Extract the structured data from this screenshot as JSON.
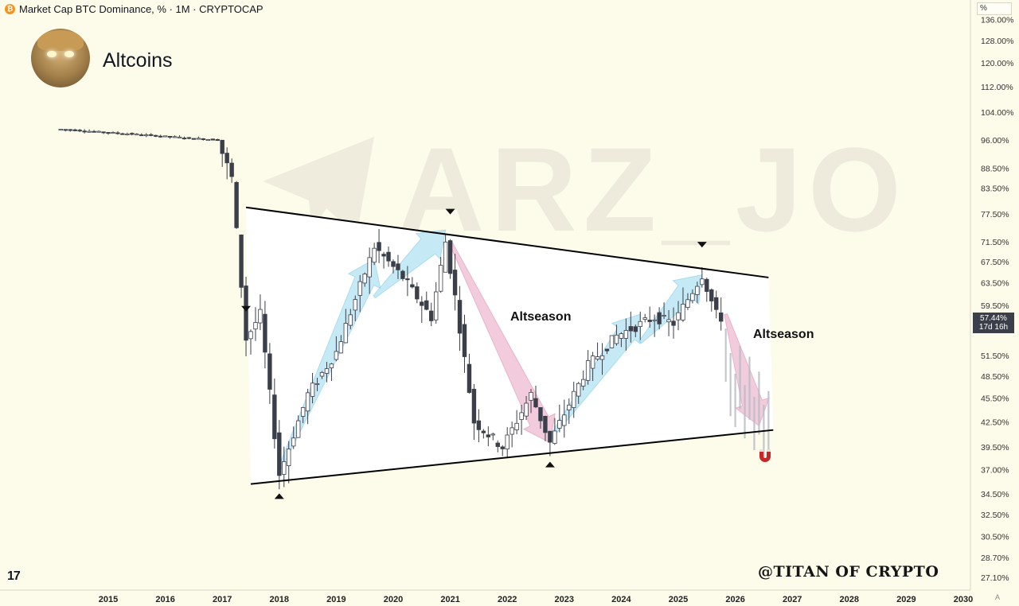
{
  "header": {
    "symbol_badge": "₿",
    "title": "Market Cap BTC Dominance, % · 1M · CRYPTOCAP"
  },
  "profile": {
    "name": "Altcoins"
  },
  "unit_label": "%",
  "watermark": "ARZ_JO",
  "credit": "@TITAN OF CRYPTO",
  "tv_logo": "17",
  "auto_label": "A",
  "price_tag": {
    "value": "57.44%",
    "countdown": "17d 16h"
  },
  "annotations": {
    "altseason_1": "Altseason",
    "altseason_2": "Altseason"
  },
  "colors": {
    "background": "#fdfbea",
    "candle_up": "#ffffff",
    "candle_down": "#3a3f4a",
    "trend_line": "#000000",
    "arrow_up": "#9fdcf0",
    "arrow_down": "#eaa8c4",
    "channel_fill": "#ffffff",
    "magnet": "#c62828"
  },
  "icons": [
    "bitcoin-icon",
    "avatar-image",
    "tradingview-logo-icon",
    "magnet-icon",
    "telegram-watermark-icon",
    "triangle-down-marker-icon",
    "triangle-up-marker-icon"
  ],
  "chart_data": {
    "type": "candlestick",
    "title": "Market Cap BTC Dominance, % · 1M · CRYPTOCAP",
    "y_scale": "log",
    "x_ticks": [
      "2015",
      "2016",
      "2017",
      "2018",
      "2019",
      "2020",
      "2021",
      "2022",
      "2023",
      "2024",
      "2025",
      "2026",
      "2027",
      "2028",
      "2029",
      "2030"
    ],
    "y_ticks": [
      {
        "value": 136,
        "label": "136.00%"
      },
      {
        "value": 128,
        "label": "128.00%"
      },
      {
        "value": 120,
        "label": "120.00%"
      },
      {
        "value": 112,
        "label": "112.00%"
      },
      {
        "value": 104,
        "label": "104.00%"
      },
      {
        "value": 96,
        "label": "96.00%"
      },
      {
        "value": 88.5,
        "label": "88.50%"
      },
      {
        "value": 83.5,
        "label": "83.50%"
      },
      {
        "value": 77.5,
        "label": "77.50%"
      },
      {
        "value": 71.5,
        "label": "71.50%"
      },
      {
        "value": 67.5,
        "label": "67.50%"
      },
      {
        "value": 63.5,
        "label": "63.50%"
      },
      {
        "value": 59.5,
        "label": "59.50%"
      },
      {
        "value": 51.5,
        "label": "51.50%"
      },
      {
        "value": 48.5,
        "label": "48.50%"
      },
      {
        "value": 45.5,
        "label": "45.50%"
      },
      {
        "value": 42.5,
        "label": "42.50%"
      },
      {
        "value": 39.5,
        "label": "39.50%"
      },
      {
        "value": 37.0,
        "label": "37.00%"
      },
      {
        "value": 34.5,
        "label": "34.50%"
      },
      {
        "value": 32.5,
        "label": "32.50%"
      },
      {
        "value": 30.5,
        "label": "30.50%"
      },
      {
        "value": 28.7,
        "label": "28.70%"
      },
      {
        "value": 27.1,
        "label": "27.10%"
      }
    ],
    "current_value": 57.44,
    "pivots": [
      {
        "date": "2014-03",
        "value": 99.0
      },
      {
        "date": "2016-12",
        "value": 96.0
      },
      {
        "date": "2017-03",
        "value": 86.0
      },
      {
        "date": "2017-06",
        "value": 54.0
      },
      {
        "date": "2017-09",
        "value": 58.0
      },
      {
        "date": "2018-01",
        "value": 36.5
      },
      {
        "date": "2018-07",
        "value": 46.0
      },
      {
        "date": "2019-01",
        "value": 52.0
      },
      {
        "date": "2019-09",
        "value": 70.5
      },
      {
        "date": "2020-03",
        "value": 64.5
      },
      {
        "date": "2020-09",
        "value": 57.5
      },
      {
        "date": "2020-12",
        "value": 71.5
      },
      {
        "date": "2021-02",
        "value": 61.0
      },
      {
        "date": "2021-06",
        "value": 42.5
      },
      {
        "date": "2021-12",
        "value": 39.5
      },
      {
        "date": "2022-06",
        "value": 46.0
      },
      {
        "date": "2022-10",
        "value": 40.0
      },
      {
        "date": "2023-06",
        "value": 50.0
      },
      {
        "date": "2023-12",
        "value": 54.5
      },
      {
        "date": "2024-08",
        "value": 57.5
      },
      {
        "date": "2024-12",
        "value": 56.5
      },
      {
        "date": "2025-06",
        "value": 65.0
      },
      {
        "date": "2025-09",
        "value": 58.0
      },
      {
        "date": "2025-10",
        "value": 57.44
      }
    ],
    "projection": [
      {
        "date": "2025-11",
        "value": 53.0
      },
      {
        "date": "2025-12",
        "value": 48.0
      },
      {
        "date": "2026-01",
        "value": 46.5
      },
      {
        "date": "2026-02",
        "value": 49.0
      },
      {
        "date": "2026-03",
        "value": 45.0
      },
      {
        "date": "2026-04",
        "value": 47.5
      },
      {
        "date": "2026-05",
        "value": 43.5
      },
      {
        "date": "2026-06",
        "value": 45.5
      },
      {
        "date": "2026-07",
        "value": 42.5
      },
      {
        "date": "2026-08",
        "value": 43.0
      }
    ],
    "channel": {
      "upper": [
        {
          "date": "2017-06",
          "value": 79.0
        },
        {
          "date": "2026-08",
          "value": 64.5
        }
      ],
      "lower": [
        {
          "date": "2017-07",
          "value": 35.5
        },
        {
          "date": "2026-09",
          "value": 41.5
        }
      ]
    },
    "arrows": [
      {
        "kind": "up",
        "from": {
          "date": "2018-01",
          "value": 37.0
        },
        "to": {
          "date": "2019-09",
          "value": 68.0
        }
      },
      {
        "kind": "up",
        "from": {
          "date": "2019-09",
          "value": 61.0
        },
        "to": {
          "date": "2020-12",
          "value": 74.0
        }
      },
      {
        "kind": "down",
        "from": {
          "date": "2021-01",
          "value": 71.5
        },
        "to": {
          "date": "2022-10",
          "value": 40.0
        }
      },
      {
        "kind": "up",
        "from": {
          "date": "2022-10",
          "value": 40.5
        },
        "to": {
          "date": "2024-05",
          "value": 58.0
        }
      },
      {
        "kind": "up",
        "from": {
          "date": "2024-05",
          "value": 53.5
        },
        "to": {
          "date": "2025-06",
          "value": 65.0
        }
      },
      {
        "kind": "down",
        "from": {
          "date": "2025-11",
          "value": 58.0
        },
        "to": {
          "date": "2026-06",
          "value": 42.0
        }
      }
    ],
    "markers": [
      {
        "shape": "down",
        "date": "2017-06",
        "position": "above"
      },
      {
        "shape": "down",
        "date": "2021-01",
        "position": "above"
      },
      {
        "shape": "down",
        "date": "2025-06",
        "position": "above"
      },
      {
        "shape": "up",
        "date": "2018-01",
        "position": "below"
      },
      {
        "shape": "up",
        "date": "2022-10",
        "position": "below"
      }
    ],
    "grid": false,
    "legend": "none"
  }
}
